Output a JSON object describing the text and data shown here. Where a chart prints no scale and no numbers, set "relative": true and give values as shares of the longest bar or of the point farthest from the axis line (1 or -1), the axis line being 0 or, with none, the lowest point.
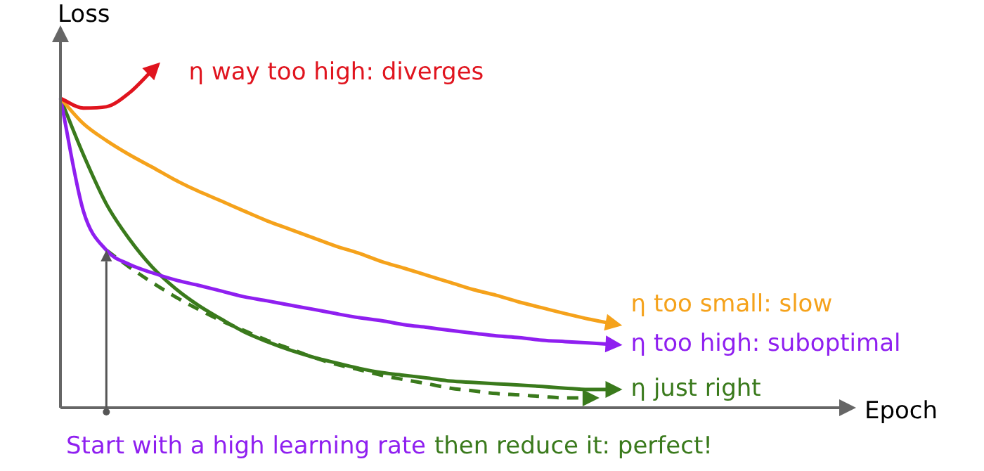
{
  "chart_data": {
    "type": "line",
    "relative": true,
    "xlabel": "Epoch",
    "ylabel": "Loss",
    "legend": false,
    "marker": "none",
    "categories": [
      null,
      null,
      null,
      null,
      null,
      null,
      null,
      null,
      null,
      null,
      null,
      null,
      null,
      null,
      null,
      null,
      null,
      null,
      null,
      null,
      null,
      null,
      null,
      null,
      null,
      null,
      null,
      null,
      null,
      null,
      null,
      null,
      null,
      null,
      null
    ],
    "series": [
      {
        "name": "η way too high: diverges",
        "color": "#e0141e",
        "values": [
          0.917,
          0.888,
          0.892,
          0.933,
          1.0,
          null,
          null,
          null,
          null,
          null,
          null,
          null,
          null,
          null,
          null,
          null,
          null,
          null,
          null,
          null,
          null,
          null,
          null,
          null,
          null,
          null,
          null,
          null,
          null,
          null,
          null,
          null,
          null,
          null,
          null
        ]
      },
      {
        "name": "η too small: slow",
        "color": "#f5a21b",
        "values": [
          0.917,
          0.842,
          0.792,
          0.75,
          0.713,
          0.675,
          0.642,
          0.613,
          0.583,
          0.554,
          0.529,
          0.504,
          0.479,
          0.458,
          0.433,
          0.413,
          0.392,
          0.371,
          0.35,
          0.333,
          0.313,
          0.296,
          0.279,
          0.263,
          0.25,
          null,
          null,
          null,
          null,
          null,
          null,
          null,
          null,
          null,
          null
        ]
      },
      {
        "name": "η too high: suboptimal",
        "color": "#8f1ff0",
        "values": [
          0.917,
          0.583,
          0.467,
          0.425,
          0.4,
          0.379,
          0.363,
          0.346,
          0.329,
          0.317,
          0.304,
          0.292,
          0.279,
          0.267,
          0.258,
          0.246,
          0.238,
          0.229,
          0.221,
          0.213,
          0.208,
          0.2,
          0.196,
          0.192,
          0.188,
          null,
          null,
          null,
          null,
          null,
          null,
          null,
          null,
          null,
          null
        ]
      },
      {
        "name": "η just right",
        "color": "#3a7a1c",
        "values": [
          0.917,
          0.75,
          0.604,
          0.5,
          0.417,
          0.354,
          0.304,
          0.263,
          0.225,
          0.196,
          0.171,
          0.15,
          0.133,
          0.117,
          0.104,
          0.096,
          0.088,
          0.079,
          0.075,
          0.071,
          0.067,
          0.063,
          0.058,
          0.054,
          0.054,
          null,
          null,
          null,
          null,
          null,
          null,
          null,
          null,
          null,
          null
        ]
      },
      {
        "color": "#3a7a1c",
        "line_style": "dashed",
        "values": [
          null,
          null,
          0.467,
          0.417,
          0.371,
          0.329,
          0.292,
          0.258,
          0.229,
          0.2,
          0.175,
          0.15,
          0.129,
          0.113,
          0.096,
          0.083,
          0.071,
          0.058,
          0.05,
          0.042,
          0.038,
          0.033,
          0.029,
          0.029,
          null,
          null,
          null,
          null,
          null,
          null,
          null,
          null,
          null,
          null,
          null
        ]
      }
    ],
    "annotations": [
      "Start with a high learning rate",
      "then reduce it: perfect!"
    ]
  }
}
